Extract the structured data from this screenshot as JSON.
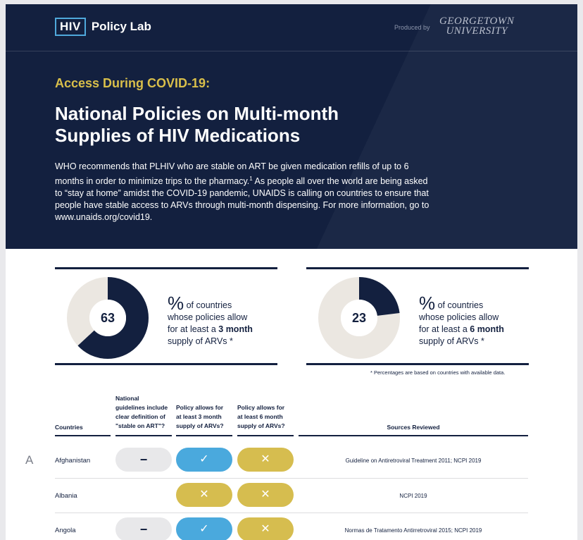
{
  "header": {
    "logo_box": "HIV",
    "logo_text": "Policy Lab",
    "produced_by": "Produced by",
    "university_line1": "GEORGETOWN",
    "university_line2": "UNIVERSITY",
    "kicker": "Access During COVID-19:",
    "title_line1": "National Policies on Multi-month",
    "title_line2": "Supplies of HIV Medications",
    "intro_part1": "WHO recommends that PLHIV who are stable on ART be given medication refills of up to 6 months in order to minimize trips to the pharmacy.",
    "intro_sup": "1",
    "intro_part2": " As people all over the world are being asked to “stay at home” amidst the COVID-19 pandemic, UNAIDS is calling on countries to ensure that people have stable access to ARVs through multi-month dispensing. For more information, go to www.unaids.org/covid19."
  },
  "stats": [
    {
      "value": "63",
      "fraction": 0.63,
      "pct": "%",
      "text1": " of countries",
      "text2": "whose policies allow",
      "text3": "for at least a ",
      "bold": "3 month",
      "text4": "supply of ARVs *"
    },
    {
      "value": "23",
      "fraction": 0.23,
      "pct": "%",
      "text1": " of countries",
      "text2": "whose policies allow",
      "text3": "for at least a ",
      "bold": "6 month",
      "text4": "supply of ARVs *"
    }
  ],
  "footnote": "* Percentages are based on countries with available data.",
  "table": {
    "headers": {
      "countries": "Countries",
      "def_l1": "National",
      "def_l2": "guidelines include",
      "def_l3": "clear definition of",
      "def_l4": "\"stable on ART\"?",
      "m3_l1": "Policy allows for",
      "m3_l2": "at least 3 month",
      "m3_l3": "supply of ARVs?",
      "m6_l1": "Policy allows for",
      "m6_l2": "at least 6 month",
      "m6_l3": "supply of ARVs?",
      "sources": "Sources Reviewed"
    },
    "section_letter": "A",
    "rows": [
      {
        "country": "Afghanistan",
        "definition": "−",
        "m3": "✓",
        "m6": "✕",
        "sources": "Guideline on Antiretroviral Treatment 2011; NCPI 2019"
      },
      {
        "country": "Albania",
        "definition": "",
        "m3": "✕",
        "m6": "✕",
        "sources": "NCPI 2019"
      },
      {
        "country": "Angola",
        "definition": "−",
        "m3": "✓",
        "m6": "✕",
        "sources": "Normas de Tratamento Antirretroviral 2015; NCPI 2019"
      }
    ]
  },
  "colors": {
    "navy": "#13203f",
    "gold": "#d6bd4f",
    "blue": "#4aa9dd",
    "light": "#ebe7e1"
  }
}
